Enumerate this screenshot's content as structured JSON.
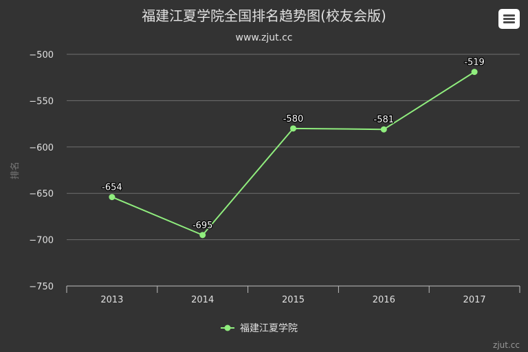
{
  "chart_data": {
    "type": "line",
    "title": "福建江夏学院全国排名趋势图(校友会版)",
    "subtitle": "www.zjut.cc",
    "ylabel": "排名",
    "xlabel": "",
    "categories": [
      "2013",
      "2014",
      "2015",
      "2016",
      "2017"
    ],
    "series": [
      {
        "name": "福建江夏学院",
        "values": [
          -654,
          -695,
          -580,
          -581,
          -519
        ],
        "labels": [
          "-654",
          "-695",
          "-580",
          "-581",
          "-519"
        ],
        "color": "#90ee7e"
      }
    ],
    "ylim": [
      -750,
      -500
    ],
    "yticks": [
      -500,
      -550,
      -600,
      -650,
      -700,
      -750
    ],
    "ytick_labels": [
      "−500",
      "−550",
      "−600",
      "−650",
      "−700",
      "−750"
    ],
    "grid": true,
    "legend": "bottom-center",
    "credits": "zjut.cc"
  },
  "menu": {
    "icon": "hamburger-menu-icon"
  },
  "colors": {
    "background": "#333333",
    "series": "#90ee7e",
    "grid": "#707070",
    "text": "#e0e0e0"
  }
}
